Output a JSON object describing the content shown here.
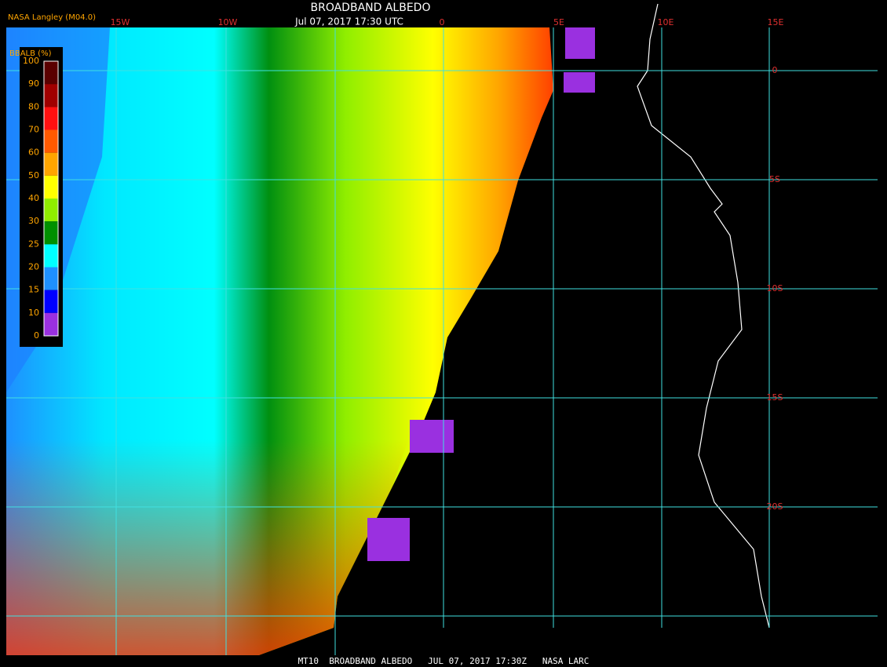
{
  "header": {
    "title": "BROADBAND ALBEDO",
    "subtitle": "Jul 07, 2017 17:30 UTC",
    "source": "NASA Langley (M04.0)"
  },
  "colorbar": {
    "label": "BBALB (%)",
    "ticks": [
      100,
      90,
      80,
      70,
      60,
      50,
      40,
      30,
      25,
      20,
      15,
      10,
      0
    ],
    "colors": [
      "#5a0000",
      "#a00000",
      "#ff1010",
      "#ff5a00",
      "#ffa500",
      "#ffff00",
      "#90ee00",
      "#009000",
      "#00ffff",
      "#1e90ff",
      "#0000ff",
      "#9a30e0"
    ]
  },
  "grid": {
    "lon_labels": [
      "15W",
      "10W",
      "0",
      "5E",
      "10E",
      "15E"
    ],
    "lat_labels": [
      "0",
      "5S",
      "10S",
      "15S",
      "20S"
    ]
  },
  "footer": "MT10  BROADBAND ALBEDO   JUL 07, 2017 17:30Z   NASA LARC"
}
